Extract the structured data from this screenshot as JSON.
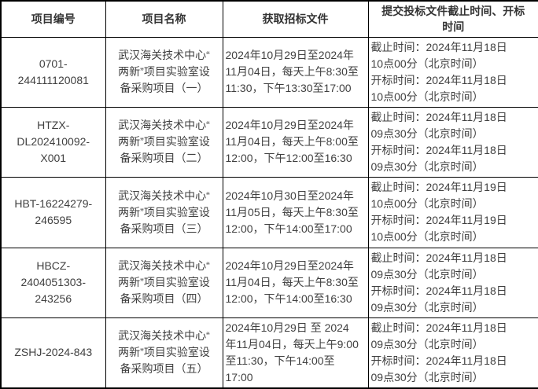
{
  "table": {
    "headers": {
      "code": "项目编号",
      "name": "项目名称",
      "obtain": "获取招标文件",
      "times": "提交投标文件截止时间、开标\n时间"
    },
    "rows": [
      {
        "code": "0701-\n244111120081",
        "name": "武汉海关技术中心“\n两新”项目实验室设\n备采购项目（一）",
        "obtain": "2024年10月29日至2024年\n11月04日，每天上午8:30至\n11:30，下午13:30至17:00",
        "times": "截止时间：2024年11月18日\n10点00分（北京时间）\n开标时间：2024年11月18日\n10点00分（北京时间）"
      },
      {
        "code": "HTZX-\nDL202410092-\nX001",
        "name": "武汉海关技术中心“\n两新”项目实验室设\n备采购项目（二）",
        "obtain": "2024年10月29日至2024年\n11月04日，每天上午8:00至\n12:00，下午12:00至16:30",
        "times": "截止时间：2024年11月18日\n09点30分（北京时间）\n开标时间：2024年11月18日\n09点30分（北京时间）"
      },
      {
        "code": "HBT-16224279-\n246595",
        "name": "武汉海关技术中心“\n两新”项目实验室设\n备采购项目（三）",
        "obtain": "2024年10月30日至2024年\n11月05日，每天上午8:30至\n12:00，下午14:00至17:00",
        "times": "截止时间：2024年11月19日\n10点00分（北京时间）\n开标时间：2024年11月19日\n10点00分（北京时间）"
      },
      {
        "code": "HBCZ-\n2404051303-\n243256",
        "name": "武汉海关技术中心“\n两新”项目实验室设\n备采购项目（四）",
        "obtain": "2024年10月29日至2024年\n11月04日，每天上午8:30至\n12:00，下午14:00至16:30",
        "times": "截止时间：2024年11月18日\n09点30分（北京时间）\n开标时间：2024年11月18日\n09点30分（北京时间）"
      },
      {
        "code": "ZSHJ-2024-843",
        "name": "武汉海关技术中心“\n两新”项目实验室设\n备采购项目（五）",
        "obtain": "2024年10月29日 至 2024\n年11月04日，每天上午9:00\n至11:30，下午14:00至\n17:00",
        "times": "截止时间：2024年11月18日\n09点30分（北京时间）\n开标时间：2024年11月18日\n09点30分（北京时间）"
      }
    ]
  }
}
